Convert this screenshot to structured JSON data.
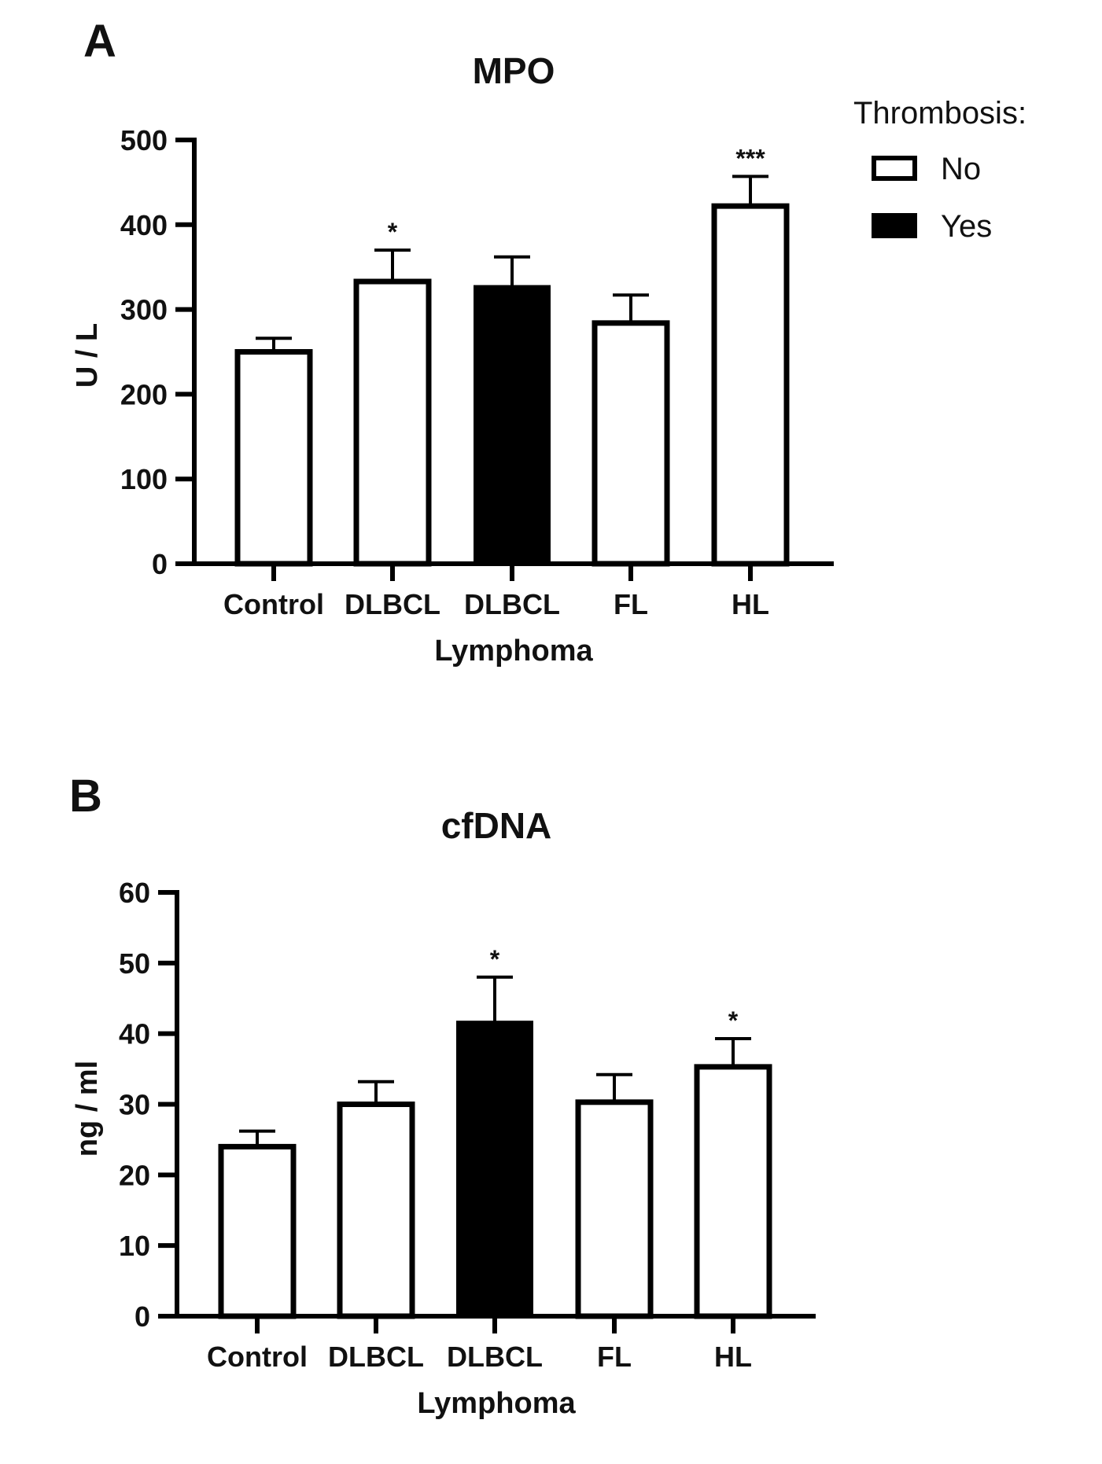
{
  "legend": {
    "title": "Thrombosis:",
    "items": [
      {
        "label": "No",
        "fill": "#ffffff"
      },
      {
        "label": "Yes",
        "fill": "#000000"
      }
    ]
  },
  "chart_data": [
    {
      "panel": "A",
      "type": "bar",
      "title": "MPO",
      "xlabel": "Lymphoma",
      "ylabel": "U / L",
      "ylim": [
        0,
        500
      ],
      "yticks": [
        0,
        100,
        200,
        300,
        400,
        500
      ],
      "grid": false,
      "categories": [
        "Control",
        "DLBCL",
        "DLBCL",
        "FL",
        "HL"
      ],
      "thrombosis": [
        "No",
        "No",
        "Yes",
        "No",
        "No"
      ],
      "values": [
        250,
        333,
        326,
        284,
        422
      ],
      "errors": [
        16,
        37,
        36,
        33,
        35
      ],
      "significance": [
        "",
        "*",
        "",
        "",
        "***"
      ]
    },
    {
      "panel": "B",
      "type": "bar",
      "title": "cfDNA",
      "xlabel": "Lymphoma",
      "ylabel": "ng / ml",
      "ylim": [
        0,
        60
      ],
      "yticks": [
        0,
        10,
        20,
        30,
        40,
        50,
        60
      ],
      "grid": false,
      "categories": [
        "Control",
        "DLBCL",
        "DLBCL",
        "FL",
        "HL"
      ],
      "thrombosis": [
        "No",
        "No",
        "Yes",
        "No",
        "No"
      ],
      "values": [
        24,
        30,
        41.5,
        30.3,
        35.3
      ],
      "errors": [
        2.2,
        3.2,
        6.5,
        3.9,
        4.0
      ],
      "significance": [
        "",
        "",
        "*",
        "",
        "*"
      ]
    }
  ]
}
